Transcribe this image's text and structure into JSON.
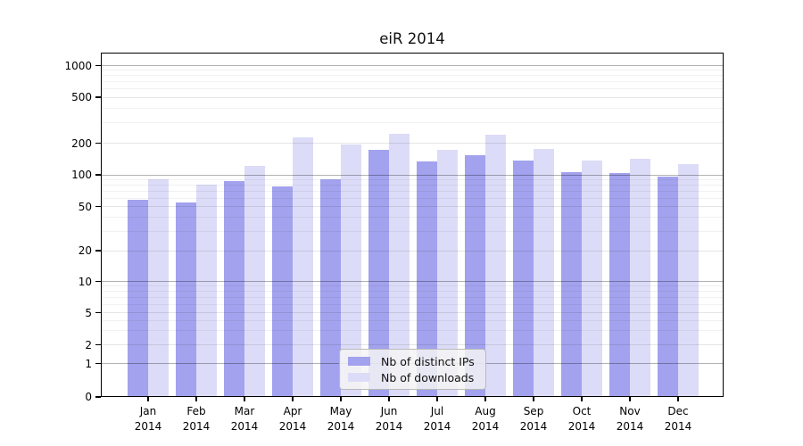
{
  "chart_data": {
    "type": "bar",
    "title": "eiR 2014",
    "categories": [
      "Jan",
      "Feb",
      "Mar",
      "Apr",
      "May",
      "Jun",
      "Jul",
      "Aug",
      "Sep",
      "Oct",
      "Nov",
      "Dec"
    ],
    "category_year": "2014",
    "series": [
      {
        "name": "Nb of distinct IPs",
        "color": "#a2a2ee",
        "values": [
          58,
          55,
          87,
          77,
          90,
          173,
          133,
          153,
          137,
          106,
          104,
          97
        ]
      },
      {
        "name": "Nb of downloads",
        "color": "#dcdcf8",
        "values": [
          90,
          81,
          121,
          225,
          195,
          240,
          172,
          238,
          176,
          137,
          141,
          126
        ]
      }
    ],
    "yscale": "symlog",
    "yticks": [
      1000,
      500,
      200,
      100,
      50,
      20,
      10,
      5,
      2,
      1,
      0
    ],
    "ylim": [
      0,
      1400
    ],
    "grid": true,
    "legend_position": "lower center"
  }
}
